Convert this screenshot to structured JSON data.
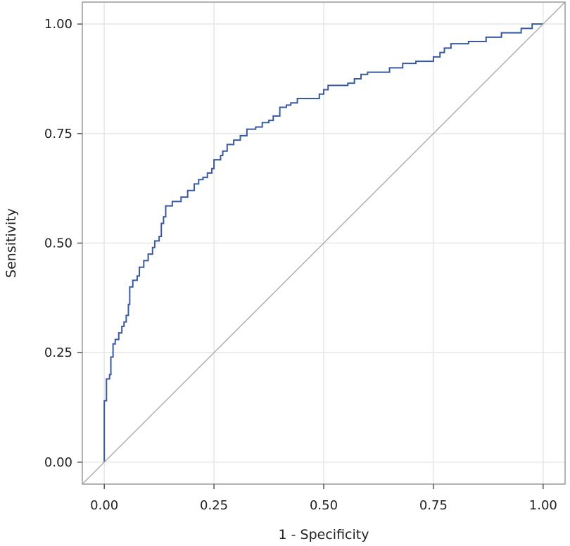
{
  "chart_data": {
    "type": "line",
    "title": "",
    "xlabel": "1 - Specificity",
    "ylabel": "Sensitivity",
    "xlim": [
      -0.05,
      1.05
    ],
    "ylim": [
      -0.05,
      1.05
    ],
    "x_ticks": [
      0,
      0.25,
      0.5,
      0.75,
      1
    ],
    "y_ticks": [
      0,
      0.25,
      0.5,
      0.75,
      1
    ],
    "x_tick_labels": [
      "0.00",
      "0.25",
      "0.50",
      "0.75",
      "1.00"
    ],
    "y_tick_labels": [
      "0.00",
      "0.25",
      "0.50",
      "0.75",
      "1.00"
    ],
    "grid": true,
    "colors": {
      "roc": "#3a5aa0",
      "reference": "#b0b0b0",
      "grid": "#e6e6e6",
      "frame": "#9a9a9a"
    },
    "series": [
      {
        "style": "step",
        "points": [
          [
            0.0,
            0.0
          ],
          [
            0.0,
            0.14
          ],
          [
            0.005,
            0.19
          ],
          [
            0.012,
            0.2
          ],
          [
            0.015,
            0.24
          ],
          [
            0.02,
            0.27
          ],
          [
            0.025,
            0.28
          ],
          [
            0.033,
            0.295
          ],
          [
            0.04,
            0.31
          ],
          [
            0.045,
            0.32
          ],
          [
            0.05,
            0.335
          ],
          [
            0.055,
            0.36
          ],
          [
            0.058,
            0.4
          ],
          [
            0.065,
            0.415
          ],
          [
            0.075,
            0.425
          ],
          [
            0.08,
            0.445
          ],
          [
            0.09,
            0.46
          ],
          [
            0.1,
            0.475
          ],
          [
            0.11,
            0.49
          ],
          [
            0.115,
            0.505
          ],
          [
            0.125,
            0.515
          ],
          [
            0.13,
            0.545
          ],
          [
            0.135,
            0.56
          ],
          [
            0.14,
            0.585
          ],
          [
            0.155,
            0.595
          ],
          [
            0.175,
            0.605
          ],
          [
            0.19,
            0.62
          ],
          [
            0.205,
            0.635
          ],
          [
            0.215,
            0.645
          ],
          [
            0.225,
            0.65
          ],
          [
            0.235,
            0.66
          ],
          [
            0.245,
            0.67
          ],
          [
            0.25,
            0.69
          ],
          [
            0.265,
            0.7
          ],
          [
            0.27,
            0.71
          ],
          [
            0.28,
            0.725
          ],
          [
            0.295,
            0.735
          ],
          [
            0.31,
            0.745
          ],
          [
            0.325,
            0.76
          ],
          [
            0.345,
            0.765
          ],
          [
            0.36,
            0.775
          ],
          [
            0.375,
            0.78
          ],
          [
            0.385,
            0.79
          ],
          [
            0.4,
            0.81
          ],
          [
            0.415,
            0.815
          ],
          [
            0.425,
            0.82
          ],
          [
            0.44,
            0.83
          ],
          [
            0.49,
            0.84
          ],
          [
            0.5,
            0.85
          ],
          [
            0.51,
            0.86
          ],
          [
            0.555,
            0.865
          ],
          [
            0.57,
            0.875
          ],
          [
            0.585,
            0.885
          ],
          [
            0.6,
            0.89
          ],
          [
            0.65,
            0.9
          ],
          [
            0.68,
            0.91
          ],
          [
            0.71,
            0.915
          ],
          [
            0.75,
            0.925
          ],
          [
            0.765,
            0.935
          ],
          [
            0.775,
            0.945
          ],
          [
            0.79,
            0.955
          ],
          [
            0.83,
            0.96
          ],
          [
            0.87,
            0.97
          ],
          [
            0.905,
            0.98
          ],
          [
            0.95,
            0.99
          ],
          [
            0.975,
            1.0
          ],
          [
            1.0,
            1.0
          ]
        ]
      },
      {
        "style": "line",
        "points": [
          [
            -0.05,
            -0.05
          ],
          [
            1.05,
            1.05
          ]
        ]
      }
    ]
  }
}
